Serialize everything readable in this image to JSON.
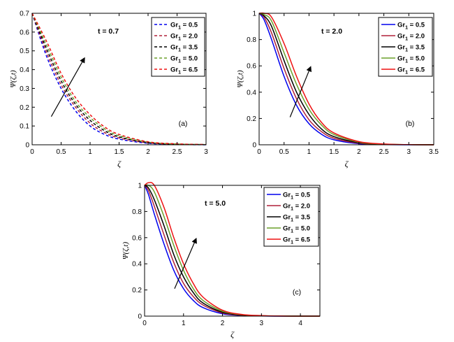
{
  "chart_data": [
    {
      "type": "line",
      "panel_label": "(a)",
      "annotation": "t = 0.7",
      "xlabel": "ζ",
      "ylabel": "Ψ(ζ,t)",
      "xlim": [
        0,
        3
      ],
      "ylim": [
        0,
        0.7
      ],
      "xticks": [
        0,
        0.5,
        1,
        1.5,
        2,
        2.5,
        3
      ],
      "xtick_labels": [
        "0",
        "0.5",
        "1",
        "1.5",
        "2",
        "2.5",
        "3"
      ],
      "yticks": [
        0,
        0.1,
        0.2,
        0.3,
        0.4,
        0.5,
        0.6,
        0.7
      ],
      "ytick_labels": [
        "0",
        "0.1",
        "0.2",
        "0.3",
        "0.4",
        "0.5",
        "0.6",
        "0.7"
      ],
      "line_style": "dashed",
      "legend_position": "top-right",
      "arrow": {
        "from": [
          0.33,
          0.15
        ],
        "to": [
          0.9,
          0.46
        ]
      },
      "series": [
        {
          "name": "Gr₁ = 0.5",
          "legend_main": "Gr",
          "legend_sub": "1",
          "legend_rest": " = 0.5",
          "color": "#0000ee",
          "x": [
            0,
            0.25,
            0.5,
            0.75,
            1.0,
            1.25,
            1.5,
            2.0,
            2.5,
            3.0
          ],
          "values": [
            0.7,
            0.47,
            0.3,
            0.18,
            0.1,
            0.055,
            0.03,
            0.008,
            0.002,
            0.0
          ]
        },
        {
          "name": "Gr₁ = 2.0",
          "legend_main": "Gr",
          "legend_sub": "1",
          "legend_rest": " = 2.0",
          "color": "#b0203a",
          "x": [
            0,
            0.25,
            0.5,
            0.75,
            1.0,
            1.25,
            1.5,
            2.0,
            2.5,
            3.0
          ],
          "values": [
            0.7,
            0.49,
            0.32,
            0.2,
            0.115,
            0.065,
            0.036,
            0.01,
            0.003,
            0.001
          ]
        },
        {
          "name": "Gr₁ = 3.5",
          "legend_main": "Gr",
          "legend_sub": "1",
          "legend_rest": " = 3.5",
          "color": "#000000",
          "x": [
            0,
            0.25,
            0.5,
            0.75,
            1.0,
            1.25,
            1.5,
            2.0,
            2.5,
            3.0
          ],
          "values": [
            0.7,
            0.51,
            0.34,
            0.215,
            0.13,
            0.075,
            0.042,
            0.012,
            0.003,
            0.001
          ]
        },
        {
          "name": "Gr₁ = 5.0",
          "legend_main": "Gr",
          "legend_sub": "1",
          "legend_rest": " = 5.0",
          "color": "#6aa02a",
          "x": [
            0,
            0.25,
            0.5,
            0.75,
            1.0,
            1.25,
            1.5,
            2.0,
            2.5,
            3.0
          ],
          "values": [
            0.7,
            0.53,
            0.36,
            0.23,
            0.145,
            0.085,
            0.048,
            0.014,
            0.004,
            0.001
          ]
        },
        {
          "name": "Gr₁ = 6.5",
          "legend_main": "Gr",
          "legend_sub": "1",
          "legend_rest": " = 6.5",
          "color": "#ee1111",
          "x": [
            0,
            0.25,
            0.5,
            0.75,
            1.0,
            1.25,
            1.5,
            2.0,
            2.5,
            3.0
          ],
          "values": [
            0.7,
            0.55,
            0.38,
            0.25,
            0.16,
            0.095,
            0.055,
            0.016,
            0.005,
            0.001
          ]
        }
      ]
    },
    {
      "type": "line",
      "panel_label": "(b)",
      "annotation": "t = 2.0",
      "xlabel": "ζ",
      "ylabel": "Ψ(ζ,t)",
      "xlim": [
        0,
        3.5
      ],
      "ylim": [
        0,
        1
      ],
      "xticks": [
        0,
        0.5,
        1,
        1.5,
        2,
        2.5,
        3,
        3.5
      ],
      "xtick_labels": [
        "0",
        "0.5",
        "1",
        "1.5",
        "2",
        "2.5",
        "3",
        "3.5"
      ],
      "yticks": [
        0,
        0.2,
        0.4,
        0.6,
        0.8,
        1
      ],
      "ytick_labels": [
        "0",
        "0.2",
        "0.4",
        "0.6",
        "0.8",
        "1"
      ],
      "line_style": "solid",
      "legend_position": "top-right",
      "arrow": {
        "from": [
          0.62,
          0.21
        ],
        "to": [
          1.03,
          0.59
        ]
      },
      "series": [
        {
          "name": "Gr₁ = 0.5",
          "legend_main": "Gr",
          "legend_sub": "1",
          "legend_rest": " = 0.5",
          "color": "#0000ee",
          "x": [
            0,
            0.1,
            0.25,
            0.5,
            0.75,
            1.0,
            1.25,
            1.5,
            2.0,
            2.5,
            3.0,
            3.5
          ],
          "values": [
            1.0,
            0.95,
            0.8,
            0.52,
            0.3,
            0.16,
            0.08,
            0.038,
            0.008,
            0.002,
            0.0,
            0.0
          ]
        },
        {
          "name": "Gr₁ = 2.0",
          "legend_main": "Gr",
          "legend_sub": "1",
          "legend_rest": " = 2.0",
          "color": "#b0203a",
          "x": [
            0,
            0.1,
            0.25,
            0.5,
            0.75,
            1.0,
            1.25,
            1.5,
            2.0,
            2.5,
            3.0,
            3.5
          ],
          "values": [
            1.0,
            0.97,
            0.85,
            0.58,
            0.35,
            0.19,
            0.1,
            0.05,
            0.012,
            0.003,
            0.001,
            0.0
          ]
        },
        {
          "name": "Gr₁ = 3.5",
          "legend_main": "Gr",
          "legend_sub": "1",
          "legend_rest": " = 3.5",
          "color": "#000000",
          "x": [
            0,
            0.1,
            0.25,
            0.5,
            0.75,
            1.0,
            1.25,
            1.5,
            2.0,
            2.5,
            3.0,
            3.5
          ],
          "values": [
            1.0,
            0.98,
            0.9,
            0.64,
            0.4,
            0.23,
            0.12,
            0.062,
            0.016,
            0.004,
            0.001,
            0.0
          ]
        },
        {
          "name": "Gr₁ = 5.0",
          "legend_main": "Gr",
          "legend_sub": "1",
          "legend_rest": " = 5.0",
          "color": "#6aa02a",
          "x": [
            0,
            0.1,
            0.25,
            0.5,
            0.75,
            1.0,
            1.25,
            1.5,
            2.0,
            2.5,
            3.0,
            3.5
          ],
          "values": [
            1.0,
            0.99,
            0.94,
            0.7,
            0.46,
            0.27,
            0.15,
            0.078,
            0.02,
            0.005,
            0.001,
            0.0
          ]
        },
        {
          "name": "Gr₁ = 6.5",
          "legend_main": "Gr",
          "legend_sub": "1",
          "legend_rest": " = 6.5",
          "color": "#ee1111",
          "x": [
            0,
            0.1,
            0.25,
            0.5,
            0.75,
            1.0,
            1.25,
            1.5,
            2.0,
            2.5,
            3.0,
            3.5
          ],
          "values": [
            1.0,
            1.0,
            0.97,
            0.77,
            0.52,
            0.31,
            0.17,
            0.09,
            0.024,
            0.006,
            0.001,
            0.0
          ]
        }
      ]
    },
    {
      "type": "line",
      "panel_label": "(c)",
      "annotation": "t = 5.0",
      "xlabel": "ζ",
      "ylabel": "Ψ(ζ,t)",
      "xlim": [
        0,
        4.5
      ],
      "ylim": [
        0,
        1
      ],
      "xticks": [
        0,
        1,
        2,
        3,
        4
      ],
      "xtick_labels": [
        "0",
        "1",
        "2",
        "3",
        "4"
      ],
      "yticks": [
        0,
        0.2,
        0.4,
        0.6,
        0.8,
        1
      ],
      "ytick_labels": [
        "0",
        "0.2",
        "0.4",
        "0.6",
        "0.8",
        "1"
      ],
      "line_style": "solid",
      "legend_position": "top-right",
      "arrow": {
        "from": [
          0.77,
          0.21
        ],
        "to": [
          1.32,
          0.59
        ]
      },
      "series": [
        {
          "name": "Gr₁ = 0.5",
          "legend_main": "Gr",
          "legend_sub": "1",
          "legend_rest": " = 0.5",
          "color": "#0000ee",
          "x": [
            0,
            0.1,
            0.25,
            0.5,
            0.75,
            1.0,
            1.25,
            1.5,
            2.0,
            2.5,
            3.0,
            3.5,
            4.0,
            4.5
          ],
          "values": [
            1.0,
            0.93,
            0.78,
            0.55,
            0.35,
            0.21,
            0.12,
            0.065,
            0.018,
            0.005,
            0.001,
            0.0,
            0.0,
            0.0
          ]
        },
        {
          "name": "Gr₁ = 2.0",
          "legend_main": "Gr",
          "legend_sub": "1",
          "legend_rest": " = 2.0",
          "color": "#b0203a",
          "x": [
            0,
            0.1,
            0.25,
            0.5,
            0.75,
            1.0,
            1.25,
            1.5,
            2.0,
            2.5,
            3.0,
            3.5,
            4.0,
            4.5
          ],
          "values": [
            1.0,
            0.96,
            0.84,
            0.62,
            0.41,
            0.25,
            0.15,
            0.085,
            0.024,
            0.007,
            0.002,
            0.0,
            0.0,
            0.0
          ]
        },
        {
          "name": "Gr₁ = 3.5",
          "legend_main": "Gr",
          "legend_sub": "1",
          "legend_rest": " = 3.5",
          "color": "#000000",
          "x": [
            0,
            0.1,
            0.25,
            0.5,
            0.75,
            1.0,
            1.25,
            1.5,
            2.0,
            2.5,
            3.0,
            3.5,
            4.0,
            4.5
          ],
          "values": [
            1.0,
            0.98,
            0.89,
            0.69,
            0.47,
            0.3,
            0.18,
            0.1,
            0.03,
            0.009,
            0.002,
            0.001,
            0.0,
            0.0
          ]
        },
        {
          "name": "Gr₁ = 5.0",
          "legend_main": "Gr",
          "legend_sub": "1",
          "legend_rest": " = 5.0",
          "color": "#6aa02a",
          "x": [
            0,
            0.1,
            0.25,
            0.5,
            0.75,
            1.0,
            1.25,
            1.5,
            2.0,
            2.5,
            3.0,
            3.5,
            4.0,
            4.5
          ],
          "values": [
            1.0,
            1.0,
            0.95,
            0.76,
            0.54,
            0.35,
            0.21,
            0.12,
            0.037,
            0.011,
            0.003,
            0.001,
            0.0,
            0.0
          ]
        },
        {
          "name": "Gr₁ = 6.5",
          "legend_main": "Gr",
          "legend_sub": "1",
          "legend_rest": " = 6.5",
          "color": "#ee1111",
          "x": [
            0,
            0.1,
            0.25,
            0.5,
            0.75,
            1.0,
            1.25,
            1.5,
            2.0,
            2.5,
            3.0,
            3.5,
            4.0,
            4.5
          ],
          "values": [
            1.0,
            1.02,
            1.0,
            0.83,
            0.6,
            0.4,
            0.25,
            0.145,
            0.045,
            0.013,
            0.004,
            0.001,
            0.0,
            0.0
          ]
        }
      ]
    }
  ]
}
